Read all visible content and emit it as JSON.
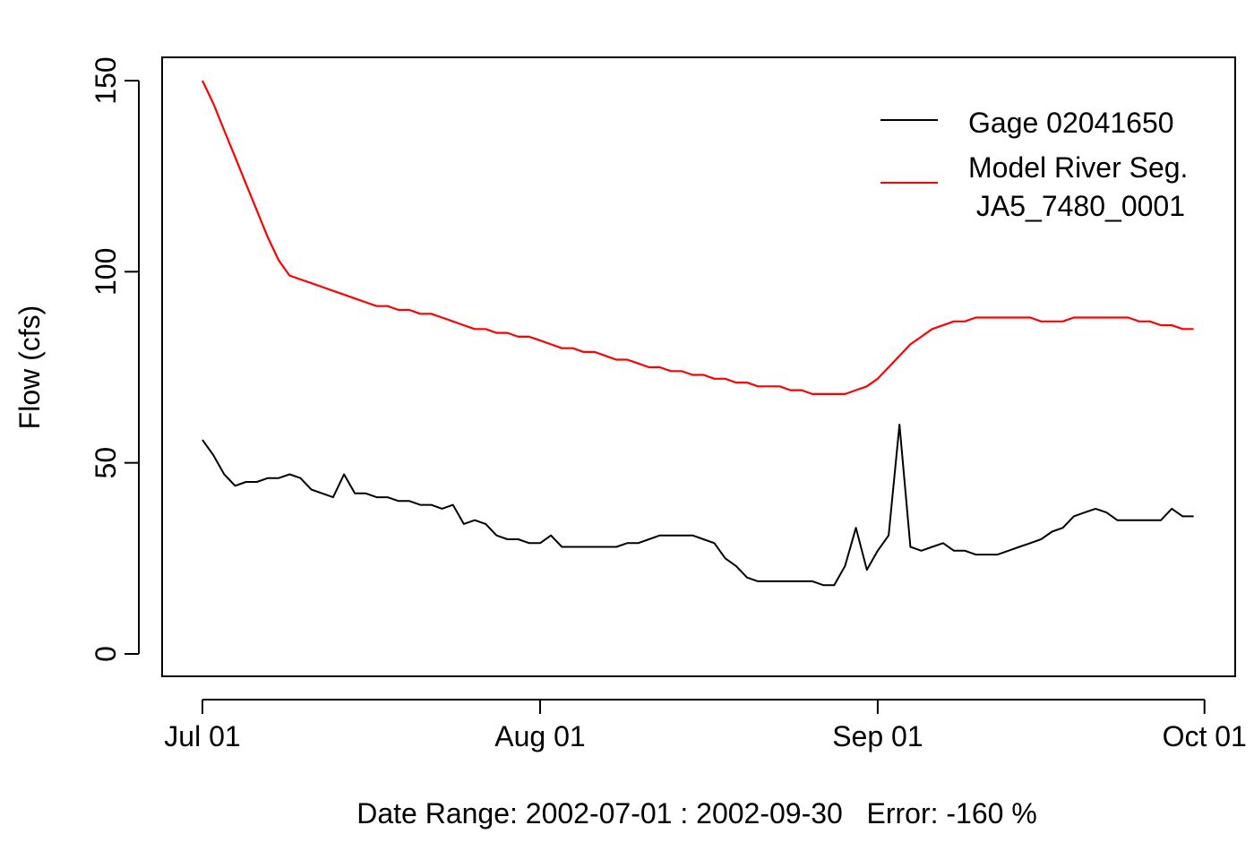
{
  "chart_data": {
    "type": "line",
    "xlabel": "Date Range: 2002-07-01 : 2002-09-30   Error: -160 %",
    "ylabel": "Flow (cfs)",
    "xlim": [
      "2002-07-01",
      "2002-09-30"
    ],
    "ylim": [
      -6,
      156
    ],
    "x_ticks": [
      {
        "date": "2002-07-01",
        "label": "Jul 01"
      },
      {
        "date": "2002-08-01",
        "label": "Aug 01"
      },
      {
        "date": "2002-09-01",
        "label": "Sep 01"
      },
      {
        "date": "2002-10-01",
        "label": "Oct 01"
      }
    ],
    "y_ticks": [
      0,
      50,
      100,
      150
    ],
    "legend_position": "top-right",
    "series": [
      {
        "name": "Gage 02041650",
        "color": "#000000",
        "points": [
          [
            "2002-07-01",
            56
          ],
          [
            "2002-07-02",
            52
          ],
          [
            "2002-07-03",
            47
          ],
          [
            "2002-07-04",
            44
          ],
          [
            "2002-07-05",
            45
          ],
          [
            "2002-07-06",
            45
          ],
          [
            "2002-07-07",
            46
          ],
          [
            "2002-07-08",
            46
          ],
          [
            "2002-07-09",
            47
          ],
          [
            "2002-07-10",
            46
          ],
          [
            "2002-07-11",
            43
          ],
          [
            "2002-07-12",
            42
          ],
          [
            "2002-07-13",
            41
          ],
          [
            "2002-07-14",
            47
          ],
          [
            "2002-07-15",
            42
          ],
          [
            "2002-07-16",
            42
          ],
          [
            "2002-07-17",
            41
          ],
          [
            "2002-07-18",
            41
          ],
          [
            "2002-07-19",
            40
          ],
          [
            "2002-07-20",
            40
          ],
          [
            "2002-07-21",
            39
          ],
          [
            "2002-07-22",
            39
          ],
          [
            "2002-07-23",
            38
          ],
          [
            "2002-07-24",
            39
          ],
          [
            "2002-07-25",
            34
          ],
          [
            "2002-07-26",
            35
          ],
          [
            "2002-07-27",
            34
          ],
          [
            "2002-07-28",
            31
          ],
          [
            "2002-07-29",
            30
          ],
          [
            "2002-07-30",
            30
          ],
          [
            "2002-07-31",
            29
          ],
          [
            "2002-08-01",
            29
          ],
          [
            "2002-08-02",
            31
          ],
          [
            "2002-08-03",
            28
          ],
          [
            "2002-08-04",
            28
          ],
          [
            "2002-08-05",
            28
          ],
          [
            "2002-08-06",
            28
          ],
          [
            "2002-08-07",
            28
          ],
          [
            "2002-08-08",
            28
          ],
          [
            "2002-08-09",
            29
          ],
          [
            "2002-08-10",
            29
          ],
          [
            "2002-08-11",
            30
          ],
          [
            "2002-08-12",
            31
          ],
          [
            "2002-08-13",
            31
          ],
          [
            "2002-08-14",
            31
          ],
          [
            "2002-08-15",
            31
          ],
          [
            "2002-08-16",
            30
          ],
          [
            "2002-08-17",
            29
          ],
          [
            "2002-08-18",
            25
          ],
          [
            "2002-08-19",
            23
          ],
          [
            "2002-08-20",
            20
          ],
          [
            "2002-08-21",
            19
          ],
          [
            "2002-08-22",
            19
          ],
          [
            "2002-08-23",
            19
          ],
          [
            "2002-08-24",
            19
          ],
          [
            "2002-08-25",
            19
          ],
          [
            "2002-08-26",
            19
          ],
          [
            "2002-08-27",
            18
          ],
          [
            "2002-08-28",
            18
          ],
          [
            "2002-08-29",
            23
          ],
          [
            "2002-08-30",
            33
          ],
          [
            "2002-08-31",
            22
          ],
          [
            "2002-09-01",
            27
          ],
          [
            "2002-09-02",
            31
          ],
          [
            "2002-09-03",
            60
          ],
          [
            "2002-09-04",
            28
          ],
          [
            "2002-09-05",
            27
          ],
          [
            "2002-09-06",
            28
          ],
          [
            "2002-09-07",
            29
          ],
          [
            "2002-09-08",
            27
          ],
          [
            "2002-09-09",
            27
          ],
          [
            "2002-09-10",
            26
          ],
          [
            "2002-09-11",
            26
          ],
          [
            "2002-09-12",
            26
          ],
          [
            "2002-09-13",
            27
          ],
          [
            "2002-09-14",
            28
          ],
          [
            "2002-09-15",
            29
          ],
          [
            "2002-09-16",
            30
          ],
          [
            "2002-09-17",
            32
          ],
          [
            "2002-09-18",
            33
          ],
          [
            "2002-09-19",
            36
          ],
          [
            "2002-09-20",
            37
          ],
          [
            "2002-09-21",
            38
          ],
          [
            "2002-09-22",
            37
          ],
          [
            "2002-09-23",
            35
          ],
          [
            "2002-09-24",
            35
          ],
          [
            "2002-09-25",
            35
          ],
          [
            "2002-09-26",
            35
          ],
          [
            "2002-09-27",
            35
          ],
          [
            "2002-09-28",
            38
          ],
          [
            "2002-09-29",
            36
          ],
          [
            "2002-09-30",
            36
          ]
        ]
      },
      {
        "name": "Model River Seg.\n JA5_7480_0001",
        "color": "#ff0000",
        "points": [
          [
            "2002-07-01",
            150
          ],
          [
            "2002-07-02",
            144
          ],
          [
            "2002-07-03",
            137
          ],
          [
            "2002-07-04",
            130
          ],
          [
            "2002-07-05",
            123
          ],
          [
            "2002-07-06",
            116
          ],
          [
            "2002-07-07",
            109
          ],
          [
            "2002-07-08",
            103
          ],
          [
            "2002-07-09",
            99
          ],
          [
            "2002-07-10",
            98
          ],
          [
            "2002-07-11",
            97
          ],
          [
            "2002-07-12",
            96
          ],
          [
            "2002-07-13",
            95
          ],
          [
            "2002-07-14",
            94
          ],
          [
            "2002-07-15",
            93
          ],
          [
            "2002-07-16",
            92
          ],
          [
            "2002-07-17",
            91
          ],
          [
            "2002-07-18",
            91
          ],
          [
            "2002-07-19",
            90
          ],
          [
            "2002-07-20",
            90
          ],
          [
            "2002-07-21",
            89
          ],
          [
            "2002-07-22",
            89
          ],
          [
            "2002-07-23",
            88
          ],
          [
            "2002-07-24",
            87
          ],
          [
            "2002-07-25",
            86
          ],
          [
            "2002-07-26",
            85
          ],
          [
            "2002-07-27",
            85
          ],
          [
            "2002-07-28",
            84
          ],
          [
            "2002-07-29",
            84
          ],
          [
            "2002-07-30",
            83
          ],
          [
            "2002-07-31",
            83
          ],
          [
            "2002-08-01",
            82
          ],
          [
            "2002-08-02",
            81
          ],
          [
            "2002-08-03",
            80
          ],
          [
            "2002-08-04",
            80
          ],
          [
            "2002-08-05",
            79
          ],
          [
            "2002-08-06",
            79
          ],
          [
            "2002-08-07",
            78
          ],
          [
            "2002-08-08",
            77
          ],
          [
            "2002-08-09",
            77
          ],
          [
            "2002-08-10",
            76
          ],
          [
            "2002-08-11",
            75
          ],
          [
            "2002-08-12",
            75
          ],
          [
            "2002-08-13",
            74
          ],
          [
            "2002-08-14",
            74
          ],
          [
            "2002-08-15",
            73
          ],
          [
            "2002-08-16",
            73
          ],
          [
            "2002-08-17",
            72
          ],
          [
            "2002-08-18",
            72
          ],
          [
            "2002-08-19",
            71
          ],
          [
            "2002-08-20",
            71
          ],
          [
            "2002-08-21",
            70
          ],
          [
            "2002-08-22",
            70
          ],
          [
            "2002-08-23",
            70
          ],
          [
            "2002-08-24",
            69
          ],
          [
            "2002-08-25",
            69
          ],
          [
            "2002-08-26",
            68
          ],
          [
            "2002-08-27",
            68
          ],
          [
            "2002-08-28",
            68
          ],
          [
            "2002-08-29",
            68
          ],
          [
            "2002-08-30",
            69
          ],
          [
            "2002-08-31",
            70
          ],
          [
            "2002-09-01",
            72
          ],
          [
            "2002-09-02",
            75
          ],
          [
            "2002-09-03",
            78
          ],
          [
            "2002-09-04",
            81
          ],
          [
            "2002-09-05",
            83
          ],
          [
            "2002-09-06",
            85
          ],
          [
            "2002-09-07",
            86
          ],
          [
            "2002-09-08",
            87
          ],
          [
            "2002-09-09",
            87
          ],
          [
            "2002-09-10",
            88
          ],
          [
            "2002-09-11",
            88
          ],
          [
            "2002-09-12",
            88
          ],
          [
            "2002-09-13",
            88
          ],
          [
            "2002-09-14",
            88
          ],
          [
            "2002-09-15",
            88
          ],
          [
            "2002-09-16",
            87
          ],
          [
            "2002-09-17",
            87
          ],
          [
            "2002-09-18",
            87
          ],
          [
            "2002-09-19",
            88
          ],
          [
            "2002-09-20",
            88
          ],
          [
            "2002-09-21",
            88
          ],
          [
            "2002-09-22",
            88
          ],
          [
            "2002-09-23",
            88
          ],
          [
            "2002-09-24",
            88
          ],
          [
            "2002-09-25",
            87
          ],
          [
            "2002-09-26",
            87
          ],
          [
            "2002-09-27",
            86
          ],
          [
            "2002-09-28",
            86
          ],
          [
            "2002-09-29",
            85
          ],
          [
            "2002-09-30",
            85
          ]
        ]
      }
    ]
  }
}
